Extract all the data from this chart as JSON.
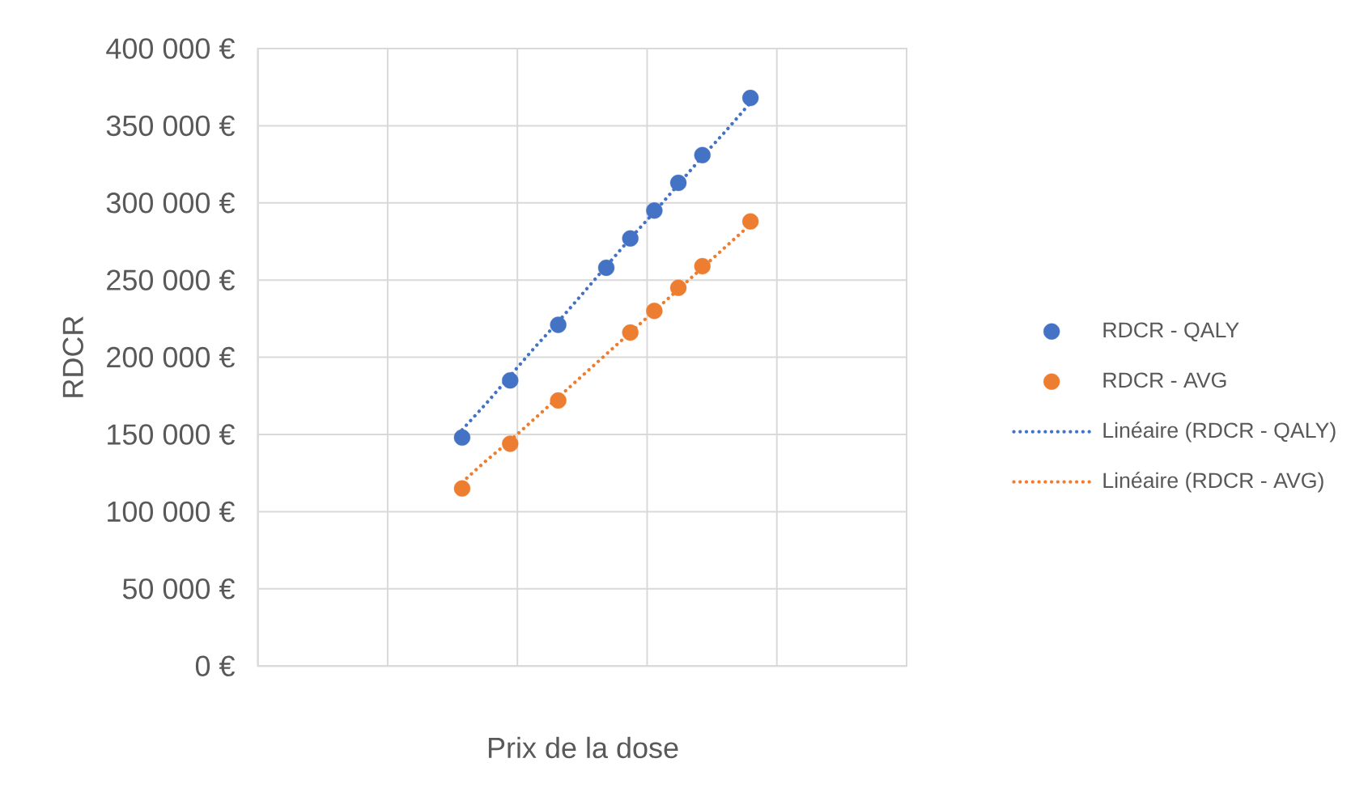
{
  "chart_data": {
    "type": "scatter",
    "xlabel": "Prix de la dose",
    "ylabel": "RDCR",
    "categories": [
      null,
      null,
      null,
      null,
      null,
      null,
      null,
      null,
      null,
      null,
      null,
      null,
      null,
      null,
      null,
      null,
      null,
      null,
      null,
      null,
      null,
      null,
      null,
      null,
      null,
      null,
      null
    ],
    "series": [
      {
        "name": "RDCR - QALY",
        "color": "#4472c4",
        "marker": "circle",
        "values": [
          null,
          null,
          null,
          null,
          null,
          null,
          null,
          null,
          148000,
          null,
          185000,
          null,
          221000,
          null,
          258000,
          277000,
          295000,
          313000,
          331000,
          null,
          368000,
          null,
          null,
          null,
          null,
          null,
          null
        ]
      },
      {
        "name": "RDCR - AVG",
        "color": "#ed7d31",
        "marker": "circle",
        "values": [
          null,
          null,
          null,
          null,
          null,
          null,
          null,
          null,
          115000,
          null,
          144000,
          null,
          172000,
          null,
          null,
          216000,
          230000,
          245000,
          259000,
          null,
          288000,
          null,
          null,
          null,
          null,
          null,
          null
        ]
      },
      {
        "name": "Linéaire (RDCR - QALY)",
        "type": "line",
        "color": "#4472c4",
        "line_style": "dotted",
        "marker": "none",
        "values": [
          null,
          null,
          null,
          null,
          null,
          null,
          null,
          null,
          153000,
          170000,
          188000,
          206000,
          223000,
          241000,
          259000,
          277000,
          294000,
          312000,
          330000,
          347000,
          365000,
          null,
          null,
          null,
          null,
          null,
          null
        ]
      },
      {
        "name": "Linéaire (RDCR - AVG)",
        "type": "line",
        "color": "#ed7d31",
        "line_style": "dotted",
        "marker": "none",
        "values": [
          null,
          null,
          null,
          null,
          null,
          null,
          null,
          null,
          119000,
          133000,
          146000,
          160000,
          174000,
          188000,
          202000,
          216000,
          230000,
          244000,
          258000,
          272000,
          286000,
          null,
          null,
          null,
          null,
          null,
          null
        ]
      }
    ],
    "ylim": [
      0,
      400000
    ],
    "yticks": [
      {
        "value": 0,
        "label": "0 €"
      },
      {
        "value": 50000,
        "label": "50 000 €"
      },
      {
        "value": 100000,
        "label": "100 000 €"
      },
      {
        "value": 150000,
        "label": "150 000 €"
      },
      {
        "value": 200000,
        "label": "200 000 €"
      },
      {
        "value": 250000,
        "label": "250 000 €"
      },
      {
        "value": 300000,
        "label": "300 000 €"
      },
      {
        "value": 350000,
        "label": "350 000 €"
      },
      {
        "value": 400000,
        "label": "400 000 €"
      }
    ],
    "grid": true,
    "legend": "right"
  }
}
